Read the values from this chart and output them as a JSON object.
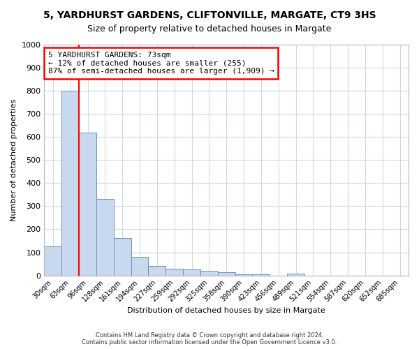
{
  "title1": "5, YARDHURST GARDENS, CLIFTONVILLE, MARGATE, CT9 3HS",
  "title2": "Size of property relative to detached houses in Margate",
  "xlabel": "Distribution of detached houses by size in Margate",
  "ylabel": "Number of detached properties",
  "categories": [
    "30sqm",
    "63sqm",
    "96sqm",
    "128sqm",
    "161sqm",
    "194sqm",
    "227sqm",
    "259sqm",
    "292sqm",
    "325sqm",
    "358sqm",
    "390sqm",
    "423sqm",
    "456sqm",
    "489sqm",
    "521sqm",
    "554sqm",
    "587sqm",
    "620sqm",
    "652sqm",
    "685sqm"
  ],
  "values": [
    125,
    800,
    620,
    330,
    163,
    80,
    40,
    30,
    27,
    20,
    14,
    5,
    5,
    0,
    8,
    0,
    0,
    0,
    0,
    0,
    0
  ],
  "bar_color": "#c8d8ee",
  "bar_edge_color": "#7090b8",
  "red_line_x": 1.5,
  "annotation_text": "5 YARDHURST GARDENS: 73sqm\n← 12% of detached houses are smaller (255)\n87% of semi-detached houses are larger (1,909) →",
  "annotation_box_color": "white",
  "annotation_box_edge_color": "red",
  "ylim": [
    0,
    1000
  ],
  "yticks": [
    0,
    100,
    200,
    300,
    400,
    500,
    600,
    700,
    800,
    900,
    1000
  ],
  "background_color": "#ffffff",
  "grid_color": "#d0d8e8",
  "footer": "Contains HM Land Registry data © Crown copyright and database right 2024.\nContains public sector information licensed under the Open Government Licence v3.0.",
  "title1_fontsize": 10,
  "title2_fontsize": 9,
  "xlabel_fontsize": 8,
  "ylabel_fontsize": 8
}
